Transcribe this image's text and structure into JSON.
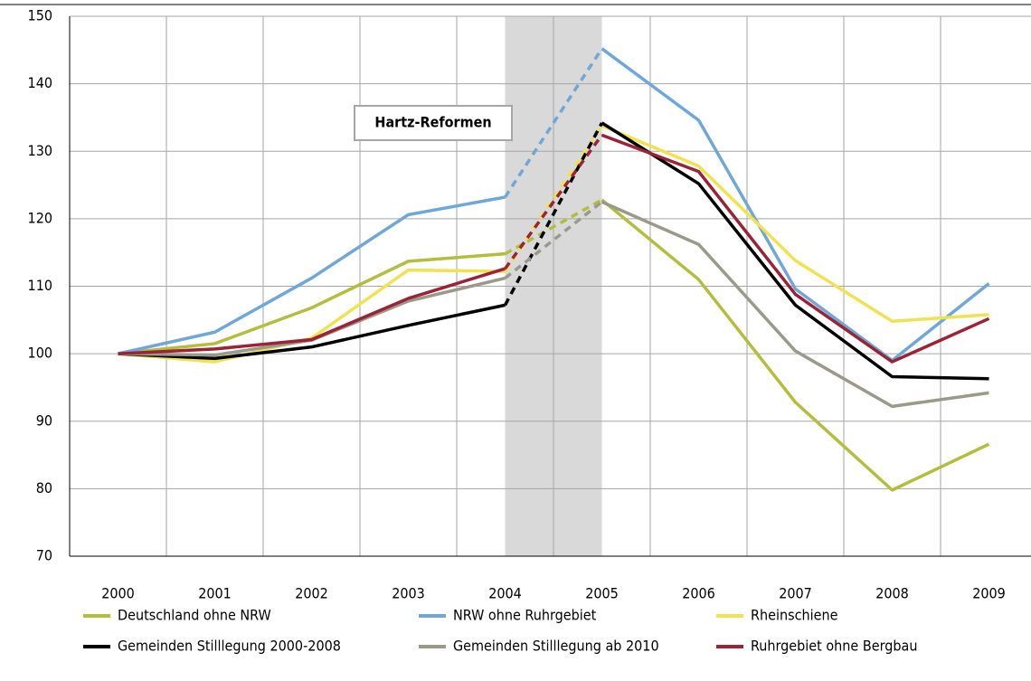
{
  "chart_data": {
    "type": "line",
    "categories": [
      "2000",
      "2001",
      "2002",
      "2003",
      "2004",
      "2005",
      "2006",
      "2007",
      "2008",
      "2009"
    ],
    "series": [
      {
        "name": "Deutschland ohne NRW",
        "color": "#b3be3c",
        "values": [
          100,
          101.5,
          106.8,
          113.7,
          114.8,
          122.8,
          111,
          92.8,
          79.8,
          86.6
        ]
      },
      {
        "name": "NRW ohne Ruhrgebiet",
        "color": "#6fa8d8",
        "values": [
          100,
          103.2,
          111.2,
          120.6,
          123.2,
          145.2,
          134.6,
          109.6,
          99,
          110.4
        ]
      },
      {
        "name": "Rheinschiene",
        "color": "#f0e250",
        "values": [
          100,
          98.8,
          102.3,
          112.4,
          112.2,
          133.8,
          127.8,
          113.8,
          104.8,
          105.8
        ]
      },
      {
        "name": "Gemeinden Stilllegung 2000-2008",
        "color": "#000000",
        "values": [
          100,
          99.3,
          101,
          104.2,
          107.2,
          134.2,
          125.2,
          107.2,
          96.6,
          96.3
        ]
      },
      {
        "name": "Gemeinden Stilllegung ab 2010",
        "color": "#9a9a8a",
        "values": [
          100,
          99.8,
          102,
          107.8,
          111.2,
          122.5,
          116.2,
          100.4,
          92.2,
          94.2
        ]
      },
      {
        "name": "Ruhrgebiet ohne Bergbau",
        "color": "#9b2335",
        "values": [
          100,
          100.7,
          102.1,
          108.2,
          112.6,
          132.4,
          127,
          108.8,
          98.8,
          105.2
        ]
      }
    ],
    "ylim": [
      70,
      150
    ],
    "yticks": [
      70,
      80,
      90,
      100,
      110,
      120,
      130,
      140,
      150
    ],
    "grid": true,
    "shaded_range": [
      "2004",
      "2005"
    ],
    "annotations": [
      {
        "text": "Hartz-Reformen"
      }
    ],
    "legend": "bottom"
  }
}
